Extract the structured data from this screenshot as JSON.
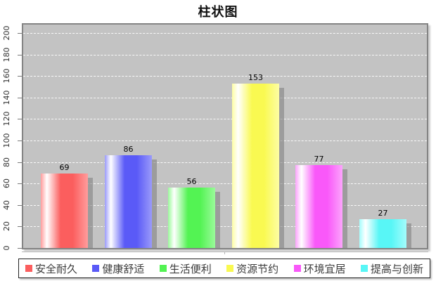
{
  "title": "柱状图",
  "chart_data": {
    "type": "bar",
    "title": "柱状图",
    "categories": [
      "安全耐久",
      "健康舒适",
      "生活便利",
      "资源节约",
      "环境宜居",
      "提高与创新"
    ],
    "values": [
      69,
      86,
      56,
      153,
      77,
      27
    ],
    "value_labels": [
      "69",
      "86",
      "56",
      "153",
      "77",
      "27"
    ],
    "bar_colors": [
      "#fb5e5e",
      "#5a5af7",
      "#53f353",
      "#f9f951",
      "#f958f9",
      "#58f6f6"
    ],
    "bar_colors_light": [
      "#ff9c9c",
      "#9a9afa",
      "#9afa9a",
      "#fdfda4",
      "#fca4fc",
      "#a4fcfc"
    ],
    "xlabel": "",
    "ylabel": "",
    "ylim": [
      0,
      200
    ],
    "ytick_step": 20,
    "yticks": [
      0,
      20,
      40,
      60,
      80,
      100,
      120,
      140,
      160,
      180,
      200
    ],
    "grid": "horizontal-dashed-white",
    "plot_bg": "#c3c3c3",
    "legend_position": "bottom"
  }
}
